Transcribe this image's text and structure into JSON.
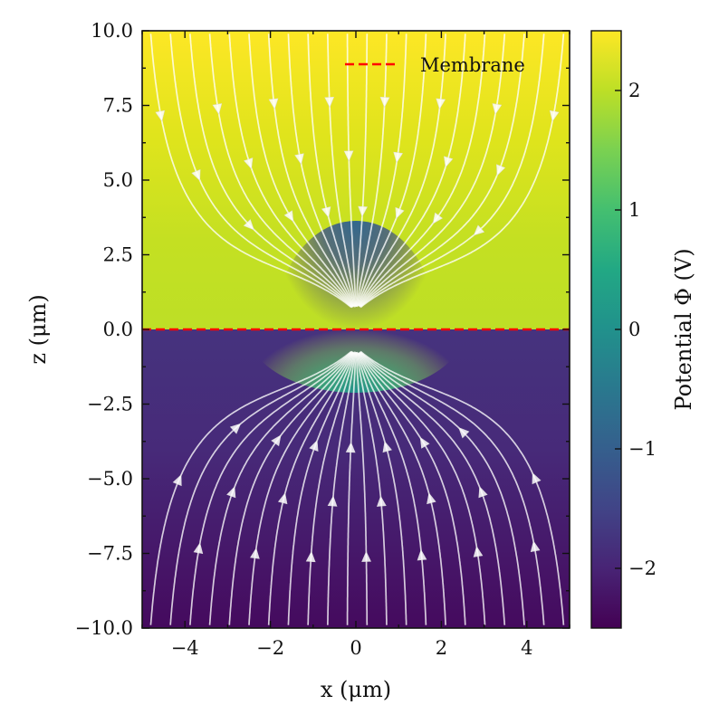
{
  "chart_data": {
    "type": "heatmap",
    "title": "",
    "xlabel": "x (μm)",
    "ylabel": "z (μm)",
    "xlim": [
      -5,
      5
    ],
    "ylim": [
      -10,
      10
    ],
    "xticks": [
      -4,
      -2,
      0,
      2,
      4
    ],
    "xtick_labels": [
      "−4",
      "−2",
      "0",
      "2",
      "4"
    ],
    "yticks": [
      10,
      7.5,
      5,
      2.5,
      0,
      -2.5,
      -5,
      -7.5,
      -10
    ],
    "ytick_labels": [
      "10.0",
      "7.5",
      "5.0",
      "2.5",
      "0.0",
      "−2.5",
      "−5.0",
      "−7.5",
      "−10.0"
    ],
    "field": "Potential Φ (V)",
    "colormap": "viridis",
    "colorbar": {
      "label": "Potential Φ (V)",
      "range": [
        -2.5,
        2.5
      ],
      "ticks": [
        2,
        1,
        0,
        -1,
        -2
      ],
      "tick_labels": [
        "2",
        "1",
        "0",
        "−1",
        "−2"
      ]
    },
    "overlays": [
      {
        "type": "line",
        "name": "Membrane",
        "z": 0,
        "style": "dashed",
        "color": "#ff0000"
      },
      {
        "type": "streamlines",
        "name": "Electric field",
        "color": "#ffffff"
      }
    ],
    "legend": {
      "entries": [
        "Membrane"
      ],
      "location": "upper right"
    }
  },
  "colors": {
    "membrane": "#ff0000",
    "streamlines": "#ffffff",
    "viridis_low": "#440154",
    "viridis_mid": "#21918c",
    "viridis_high": "#fde725"
  }
}
